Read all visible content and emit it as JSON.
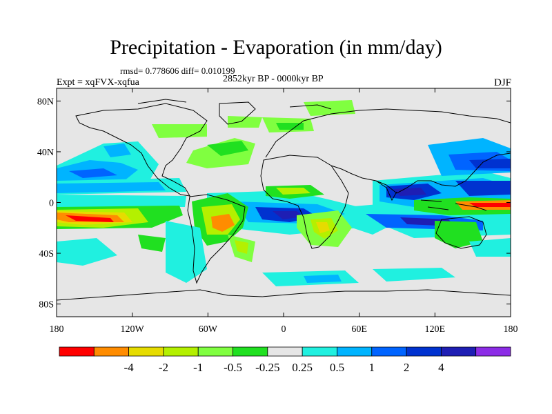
{
  "figure": {
    "title": "Precipitation - Evaporation (in mm/day)",
    "stats": "rmsd= 0.778606 diff= 0.010199",
    "period": "2852kyr BP - 0000kyr BP",
    "experiment": "Expt = xqFVX-xqfua",
    "season": "DJF"
  },
  "map": {
    "projection": "cylindrical-equidistant",
    "lon_range": [
      -180,
      180
    ],
    "lat_range": [
      -90,
      90
    ],
    "ocean_land_default_color": "#e6e6e6",
    "coastline_color": "#000000",
    "y_ticks": [
      {
        "value": 80,
        "label": "80N"
      },
      {
        "value": 40,
        "label": "40N"
      },
      {
        "value": 0,
        "label": "0"
      },
      {
        "value": -40,
        "label": "40S"
      },
      {
        "value": -80,
        "label": "80S"
      }
    ],
    "x_ticks": [
      {
        "value": -180,
        "label": "180"
      },
      {
        "value": -120,
        "label": "120W"
      },
      {
        "value": -60,
        "label": "60W"
      },
      {
        "value": 0,
        "label": "0"
      },
      {
        "value": 60,
        "label": "60E"
      },
      {
        "value": 120,
        "label": "120E"
      },
      {
        "value": 180,
        "label": "180"
      }
    ]
  },
  "colorbar": {
    "colors": [
      "#ff0000",
      "#ff8c00",
      "#e6dc00",
      "#b4f000",
      "#80ff40",
      "#20e020",
      "#e6e6e6",
      "#20f0e0",
      "#00b4ff",
      "#0064ff",
      "#0032d0",
      "#1e1eb4",
      "#8c2ce6"
    ],
    "labels": [
      "-4",
      "-2",
      "-1",
      "-0.5",
      "-0.25",
      "0.25",
      "0.5",
      "1",
      "2",
      "4"
    ]
  }
}
